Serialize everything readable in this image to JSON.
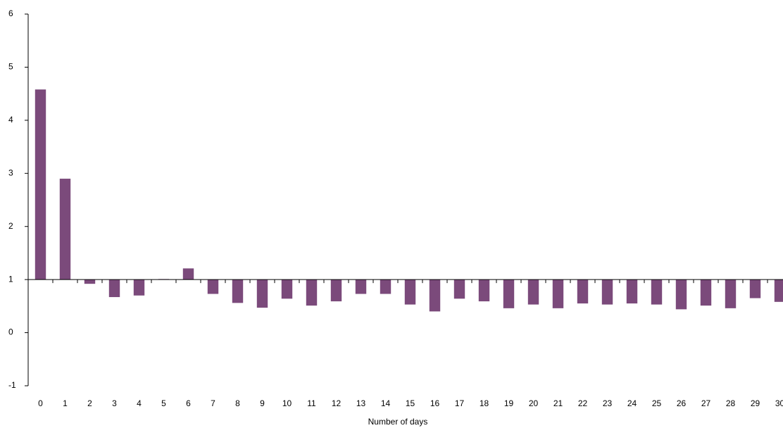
{
  "chart_data": {
    "type": "bar",
    "x_label": "Number of days",
    "categories": [
      "0",
      "1",
      "2",
      "3",
      "4",
      "5",
      "6",
      "7",
      "8",
      "9",
      "10",
      "11",
      "12",
      "13",
      "14",
      "15",
      "16",
      "17",
      "18",
      "19",
      "20",
      "21",
      "22",
      "23",
      "24",
      "25",
      "26",
      "27",
      "28",
      "29",
      "30"
    ],
    "values": [
      4.58,
      2.9,
      0.92,
      0.67,
      0.7,
      1.01,
      1.21,
      0.73,
      0.56,
      0.47,
      0.64,
      0.51,
      0.59,
      0.73,
      0.73,
      0.53,
      0.4,
      0.64,
      0.59,
      0.46,
      0.53,
      0.46,
      0.55,
      0.53,
      0.55,
      0.53,
      0.44,
      0.51,
      0.46,
      0.65,
      0.58
    ],
    "color": "#7b4a7b",
    "x_axis_at": 1,
    "ylim": [
      -1,
      6
    ],
    "yticks": [
      -1,
      0,
      1,
      2,
      3,
      4,
      5,
      6
    ],
    "grid": false
  }
}
